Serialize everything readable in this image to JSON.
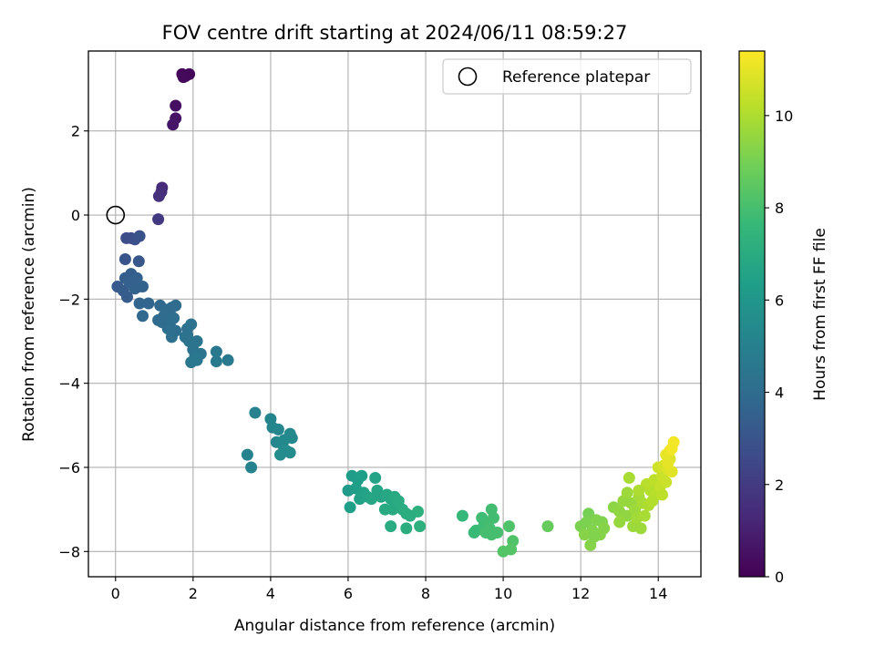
{
  "chart_data": {
    "type": "scatter",
    "title": "FOV centre drift starting at 2024/06/11 08:59:27",
    "xlabel": "Angular distance from reference (arcmin)",
    "ylabel": "Rotation from reference (arcmin)",
    "colorbar_label": "Hours from first FF file",
    "xlim": [
      -0.7,
      15.1
    ],
    "ylim": [
      -8.6,
      3.9
    ],
    "xticks": [
      0,
      2,
      4,
      6,
      8,
      10,
      12,
      14
    ],
    "yticks": [
      -8,
      -6,
      -4,
      -2,
      0,
      2
    ],
    "colorbar_range": [
      0,
      11.4
    ],
    "colorbar_ticks": [
      0,
      2,
      4,
      6,
      8,
      10
    ],
    "colormap": [
      "#440154",
      "#482878",
      "#3e4989",
      "#31688e",
      "#26828e",
      "#1f9e89",
      "#35b779",
      "#6ece58",
      "#b5de2b",
      "#fde725"
    ],
    "grid": true,
    "legend": {
      "label": "Reference platepar",
      "position": "top-right"
    },
    "reference_point": {
      "x": 0,
      "y": 0
    },
    "series": [
      {
        "points": [
          [
            1.72,
            3.35,
            0.1
          ],
          [
            1.8,
            3.3,
            0.15
          ],
          [
            1.9,
            3.35,
            0.2
          ],
          [
            1.75,
            3.28,
            0.25
          ],
          [
            1.55,
            2.6,
            0.5
          ],
          [
            1.55,
            2.3,
            0.6
          ],
          [
            1.48,
            2.15,
            0.7
          ],
          [
            1.2,
            0.65,
            1.4
          ],
          [
            1.18,
            0.55,
            1.5
          ],
          [
            1.12,
            0.45,
            1.6
          ],
          [
            1.1,
            -0.1,
            1.9
          ],
          [
            0.4,
            -0.55,
            2.6
          ],
          [
            0.28,
            -0.55,
            2.7
          ],
          [
            0.5,
            -0.58,
            2.8
          ],
          [
            0.62,
            -0.5,
            2.9
          ],
          [
            0.25,
            -1.05,
            3.0
          ],
          [
            0.6,
            -1.1,
            3.1
          ],
          [
            0.05,
            -1.7,
            3.2
          ],
          [
            0.2,
            -1.8,
            3.3
          ],
          [
            0.3,
            -1.95,
            3.3
          ],
          [
            0.25,
            -1.5,
            3.4
          ],
          [
            0.4,
            -1.4,
            3.4
          ],
          [
            0.55,
            -1.5,
            3.5
          ],
          [
            0.6,
            -1.7,
            3.5
          ],
          [
            0.7,
            -1.7,
            3.6
          ],
          [
            0.5,
            -1.75,
            3.6
          ],
          [
            0.35,
            -1.6,
            3.5
          ],
          [
            0.62,
            -2.1,
            3.7
          ],
          [
            0.85,
            -2.1,
            3.7
          ],
          [
            0.7,
            -2.4,
            3.8
          ],
          [
            1.15,
            -2.15,
            3.8
          ],
          [
            1.3,
            -2.25,
            3.9
          ],
          [
            1.45,
            -2.2,
            3.9
          ],
          [
            1.55,
            -2.15,
            4.0
          ],
          [
            1.1,
            -2.5,
            3.9
          ],
          [
            1.25,
            -2.4,
            4.0
          ],
          [
            1.4,
            -2.6,
            4.0
          ],
          [
            1.5,
            -2.45,
            4.1
          ],
          [
            1.35,
            -2.7,
            4.1
          ],
          [
            1.45,
            -2.9,
            4.2
          ],
          [
            1.55,
            -2.75,
            4.1
          ],
          [
            1.2,
            -2.55,
            4.0
          ],
          [
            1.85,
            -2.7,
            4.2
          ],
          [
            1.95,
            -2.6,
            4.3
          ],
          [
            1.8,
            -2.9,
            4.3
          ],
          [
            1.9,
            -3.0,
            4.4
          ],
          [
            2.1,
            -3.0,
            4.4
          ],
          [
            2.0,
            -3.2,
            4.4
          ],
          [
            2.2,
            -3.3,
            4.5
          ],
          [
            2.05,
            -3.35,
            4.5
          ],
          [
            1.95,
            -3.5,
            4.6
          ],
          [
            2.1,
            -3.45,
            4.6
          ],
          [
            1.85,
            -2.85,
            4.3
          ],
          [
            2.6,
            -3.25,
            4.6
          ],
          [
            2.6,
            -3.48,
            4.7
          ],
          [
            2.9,
            -3.45,
            4.7
          ],
          [
            3.6,
            -4.7,
            5.0
          ],
          [
            3.4,
            -5.7,
            5.1
          ],
          [
            3.5,
            -6.0,
            5.1
          ],
          [
            4.0,
            -4.85,
            5.2
          ],
          [
            4.05,
            -5.05,
            5.2
          ],
          [
            4.2,
            -5.1,
            5.3
          ],
          [
            4.15,
            -5.4,
            5.3
          ],
          [
            4.3,
            -5.45,
            5.4
          ],
          [
            4.5,
            -5.2,
            5.4
          ],
          [
            4.55,
            -5.3,
            5.4
          ],
          [
            4.4,
            -5.6,
            5.5
          ],
          [
            4.25,
            -5.7,
            5.5
          ],
          [
            4.5,
            -5.65,
            5.5
          ],
          [
            4.35,
            -5.35,
            5.4
          ],
          [
            6.0,
            -6.55,
            6.2
          ],
          [
            6.1,
            -6.2,
            6.3
          ],
          [
            6.25,
            -6.3,
            6.3
          ],
          [
            6.35,
            -6.2,
            6.4
          ],
          [
            6.2,
            -6.5,
            6.4
          ],
          [
            6.4,
            -6.6,
            6.5
          ],
          [
            6.3,
            -6.75,
            6.5
          ],
          [
            6.5,
            -6.7,
            6.6
          ],
          [
            6.05,
            -6.95,
            6.4
          ],
          [
            6.7,
            -6.25,
            6.6
          ],
          [
            6.75,
            -6.55,
            6.7
          ],
          [
            6.85,
            -6.7,
            6.7
          ],
          [
            6.6,
            -6.75,
            6.7
          ],
          [
            7.0,
            -6.65,
            6.8
          ],
          [
            7.1,
            -6.75,
            6.8
          ],
          [
            7.2,
            -6.7,
            6.9
          ],
          [
            6.95,
            -7.0,
            6.9
          ],
          [
            7.15,
            -7.0,
            6.9
          ],
          [
            7.3,
            -6.8,
            7.0
          ],
          [
            7.4,
            -7.0,
            7.0
          ],
          [
            7.1,
            -7.4,
            7.0
          ],
          [
            7.5,
            -7.1,
            7.1
          ],
          [
            7.5,
            -7.45,
            7.1
          ],
          [
            7.8,
            -7.05,
            7.2
          ],
          [
            7.85,
            -7.4,
            7.2
          ],
          [
            7.6,
            -7.15,
            7.1
          ],
          [
            8.95,
            -7.15,
            7.6
          ],
          [
            9.3,
            -7.5,
            7.7
          ],
          [
            9.25,
            -7.55,
            7.7
          ],
          [
            9.5,
            -7.4,
            7.8
          ],
          [
            9.45,
            -7.2,
            7.8
          ],
          [
            9.6,
            -7.35,
            7.9
          ],
          [
            9.7,
            -7.0,
            7.9
          ],
          [
            9.75,
            -7.2,
            7.9
          ],
          [
            9.55,
            -7.55,
            8.0
          ],
          [
            9.7,
            -7.6,
            8.0
          ],
          [
            9.85,
            -7.55,
            8.0
          ],
          [
            9.65,
            -7.45,
            8.0
          ],
          [
            10.15,
            -7.4,
            8.2
          ],
          [
            10.25,
            -7.75,
            8.2
          ],
          [
            10.2,
            -7.95,
            8.3
          ],
          [
            10.0,
            -8.0,
            8.3
          ],
          [
            11.15,
            -7.4,
            8.7
          ],
          [
            12.2,
            -7.1,
            9.0
          ],
          [
            12.15,
            -7.3,
            9.1
          ],
          [
            12.0,
            -7.4,
            9.1
          ],
          [
            12.3,
            -7.5,
            9.2
          ],
          [
            12.4,
            -7.25,
            9.2
          ],
          [
            12.55,
            -7.3,
            9.2
          ],
          [
            12.5,
            -7.6,
            9.3
          ],
          [
            12.25,
            -7.85,
            9.3
          ],
          [
            12.1,
            -7.6,
            9.3
          ],
          [
            12.6,
            -7.45,
            9.3
          ],
          [
            12.35,
            -7.65,
            9.2
          ],
          [
            12.85,
            -6.95,
            9.4
          ],
          [
            13.0,
            -7.05,
            9.5
          ],
          [
            13.2,
            -7.15,
            9.5
          ],
          [
            13.1,
            -6.8,
            9.6
          ],
          [
            13.3,
            -6.85,
            9.6
          ],
          [
            13.4,
            -7.0,
            9.7
          ],
          [
            13.2,
            -6.6,
            9.7
          ],
          [
            13.5,
            -6.7,
            9.8
          ],
          [
            13.0,
            -7.3,
            9.6
          ],
          [
            13.35,
            -7.4,
            9.7
          ],
          [
            13.45,
            -7.2,
            9.8
          ],
          [
            13.6,
            -6.85,
            9.9
          ],
          [
            13.75,
            -6.9,
            10.0
          ],
          [
            13.8,
            -6.55,
            10.1
          ],
          [
            13.95,
            -6.65,
            10.2
          ],
          [
            13.7,
            -6.4,
            10.2
          ],
          [
            13.9,
            -6.3,
            10.3
          ],
          [
            14.05,
            -6.45,
            10.4
          ],
          [
            14.1,
            -6.2,
            10.5
          ],
          [
            14.2,
            -6.35,
            10.5
          ],
          [
            14.0,
            -6.0,
            10.6
          ],
          [
            14.15,
            -5.95,
            10.7
          ],
          [
            14.25,
            -6.05,
            10.8
          ],
          [
            14.3,
            -5.8,
            10.8
          ],
          [
            14.35,
            -6.1,
            10.9
          ],
          [
            14.2,
            -5.7,
            11.0
          ],
          [
            14.4,
            -5.4,
            11.2
          ],
          [
            14.3,
            -5.6,
            11.1
          ],
          [
            13.5,
            -6.55,
            10.0
          ],
          [
            13.85,
            -6.8,
            10.1
          ],
          [
            14.1,
            -6.65,
            10.3
          ],
          [
            13.25,
            -6.25,
            9.9
          ],
          [
            13.65,
            -7.15,
            9.9
          ],
          [
            13.55,
            -7.45,
            9.7
          ],
          [
            14.25,
            -5.9,
            11.0
          ],
          [
            14.35,
            -5.55,
            11.2
          ]
        ]
      }
    ]
  }
}
